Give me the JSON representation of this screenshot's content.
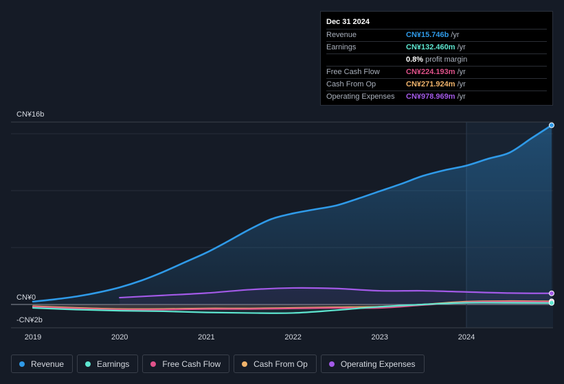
{
  "tooltip": {
    "date": "Dec 31 2024",
    "rows": [
      {
        "name": "Revenue",
        "value": "CN¥15.746b",
        "unit": "/yr",
        "color": "#2f9ae8"
      },
      {
        "name": "Earnings",
        "value": "CN¥132.460m",
        "unit": "/yr",
        "color": "#5ee6d0"
      },
      {
        "name": "",
        "value": "0.8%",
        "unit": "profit margin",
        "color": "#ffffff"
      },
      {
        "name": "Free Cash Flow",
        "value": "CN¥224.193m",
        "unit": "/yr",
        "color": "#e0528a"
      },
      {
        "name": "Cash From Op",
        "value": "CN¥271.924m",
        "unit": "/yr",
        "color": "#f0b36b"
      },
      {
        "name": "Operating Expenses",
        "value": "CN¥978.969m",
        "unit": "/yr",
        "color": "#a35ae8"
      }
    ]
  },
  "legend": [
    {
      "label": "Revenue",
      "color": "#2f9ae8"
    },
    {
      "label": "Earnings",
      "color": "#5ee6d0"
    },
    {
      "label": "Free Cash Flow",
      "color": "#e0528a"
    },
    {
      "label": "Cash From Op",
      "color": "#f0b36b"
    },
    {
      "label": "Operating Expenses",
      "color": "#a35ae8"
    }
  ],
  "chart_data": {
    "type": "line",
    "y_unit": "CN¥ billions",
    "ylim": [
      -2,
      16
    ],
    "y_tick_labels": [
      {
        "value": 16,
        "label": "CN¥16b"
      },
      {
        "value": 0,
        "label": "CN¥0"
      },
      {
        "value": -2,
        "label": "-CN¥2b"
      }
    ],
    "xlim": [
      2019,
      2025
    ],
    "x_ticks": [
      2019,
      2020,
      2021,
      2022,
      2023,
      2024
    ],
    "x_tick_labels": [
      "2019",
      "2020",
      "2021",
      "2022",
      "2023",
      "2024"
    ],
    "highlight_start": 2024,
    "series": [
      {
        "name": "Revenue",
        "color": "#2f9ae8",
        "fill": true,
        "x": [
          2019,
          2019.25,
          2019.5,
          2019.75,
          2020,
          2020.25,
          2020.5,
          2020.75,
          2021,
          2021.25,
          2021.5,
          2021.75,
          2022,
          2022.25,
          2022.5,
          2022.75,
          2023,
          2023.25,
          2023.5,
          2023.75,
          2024,
          2024.25,
          2024.5,
          2024.75,
          2025
        ],
        "y": [
          0.25,
          0.45,
          0.7,
          1.05,
          1.5,
          2.1,
          2.85,
          3.7,
          4.55,
          5.55,
          6.6,
          7.5,
          8.0,
          8.35,
          8.7,
          9.3,
          9.95,
          10.6,
          11.3,
          11.8,
          12.2,
          12.8,
          13.35,
          14.6,
          15.746
        ]
      },
      {
        "name": "Earnings",
        "color": "#5ee6d0",
        "x": [
          2019,
          2019.5,
          2020,
          2020.5,
          2021,
          2021.5,
          2022,
          2022.5,
          2023,
          2023.5,
          2024,
          2024.5,
          2025
        ],
        "y": [
          -0.3,
          -0.45,
          -0.55,
          -0.6,
          -0.7,
          -0.75,
          -0.75,
          -0.5,
          -0.2,
          0.0,
          0.15,
          0.15,
          0.132
        ]
      },
      {
        "name": "Free Cash Flow",
        "color": "#e0528a",
        "x": [
          2019,
          2019.5,
          2020,
          2020.5,
          2021,
          2021.5,
          2022,
          2022.5,
          2023,
          2023.5,
          2024,
          2024.5,
          2025
        ],
        "y": [
          -0.2,
          -0.35,
          -0.45,
          -0.45,
          -0.4,
          -0.4,
          -0.35,
          -0.3,
          -0.3,
          -0.05,
          0.2,
          0.25,
          0.224
        ]
      },
      {
        "name": "Cash From Op",
        "color": "#f0b36b",
        "x": [
          2019,
          2019.5,
          2020,
          2020.5,
          2021,
          2021.5,
          2022,
          2022.5,
          2023,
          2023.5,
          2024,
          2024.5,
          2025
        ],
        "y": [
          -0.15,
          -0.3,
          -0.4,
          -0.4,
          -0.35,
          -0.35,
          -0.3,
          -0.25,
          -0.2,
          0.0,
          0.25,
          0.3,
          0.272
        ]
      },
      {
        "name": "Operating Expenses",
        "color": "#a35ae8",
        "x": [
          2020,
          2020.5,
          2021,
          2021.5,
          2022,
          2022.5,
          2023,
          2023.5,
          2024,
          2024.5,
          2025
        ],
        "y": [
          0.6,
          0.8,
          1.0,
          1.3,
          1.45,
          1.4,
          1.2,
          1.2,
          1.1,
          1.0,
          0.979
        ]
      }
    ]
  }
}
